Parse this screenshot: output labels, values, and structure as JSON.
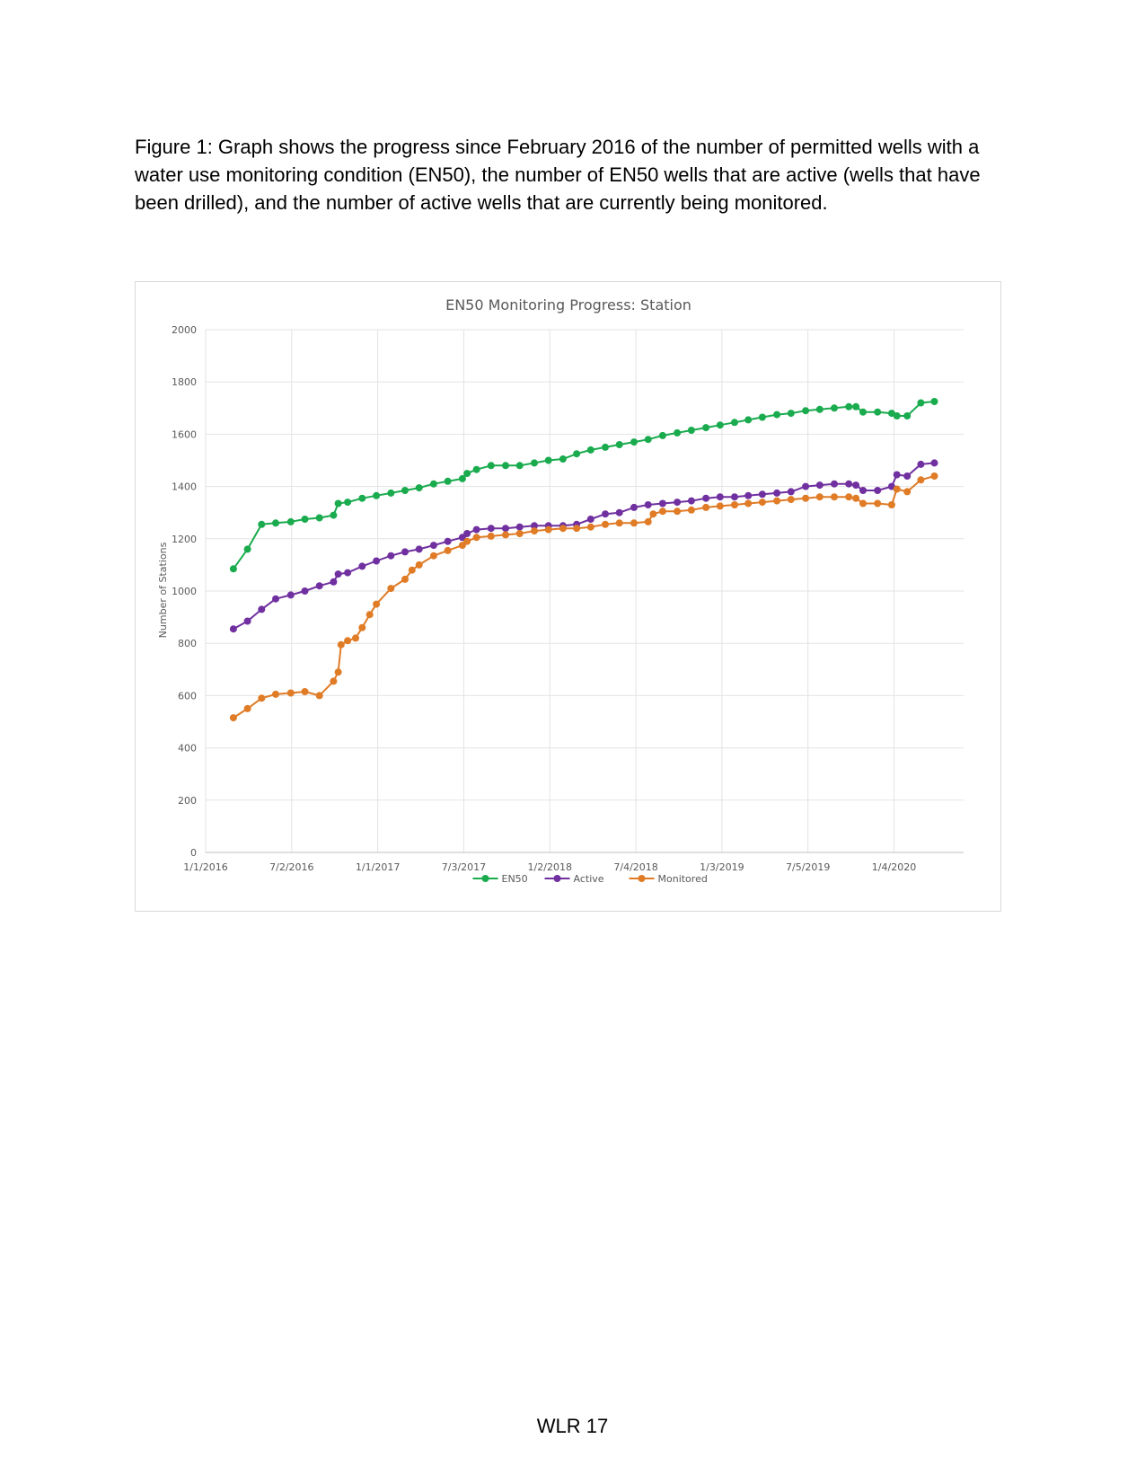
{
  "caption": "Figure 1: Graph shows the progress since February 2016 of the number of permitted wells with a water use monitoring condition (EN50), the number of EN50 wells that are active (wells that have been drilled), and the number of active wells that are currently being monitored.",
  "footer": "WLR 17",
  "chart_data": {
    "type": "line",
    "title": "EN50 Monitoring Progress: Station",
    "xlabel": "",
    "ylabel": "Number of Stations",
    "ylim": [
      0,
      2000
    ],
    "yticks": [
      0,
      200,
      400,
      600,
      800,
      1000,
      1200,
      1400,
      1600,
      1800,
      2000
    ],
    "xlim": [
      "2016-01-01",
      "2020-05-31"
    ],
    "xticks": [
      {
        "date": "2016-01-01",
        "label": "1/1/2016"
      },
      {
        "date": "2016-07-02",
        "label": "7/2/2016"
      },
      {
        "date": "2017-01-01",
        "label": "1/1/2017"
      },
      {
        "date": "2017-07-03",
        "label": "7/3/2017"
      },
      {
        "date": "2018-01-02",
        "label": "1/2/2018"
      },
      {
        "date": "2018-07-04",
        "label": "7/4/2018"
      },
      {
        "date": "2019-01-03",
        "label": "1/3/2019"
      },
      {
        "date": "2019-07-05",
        "label": "7/5/2019"
      },
      {
        "date": "2020-01-04",
        "label": "1/4/2020"
      }
    ],
    "grid": true,
    "legend": "bottom",
    "series": [
      {
        "name": "EN50",
        "color": "#1aab4e",
        "points": [
          [
            "2016-02-29",
            1085
          ],
          [
            "2016-03-30",
            1160
          ],
          [
            "2016-04-29",
            1255
          ],
          [
            "2016-05-29",
            1260
          ],
          [
            "2016-06-30",
            1265
          ],
          [
            "2016-07-30",
            1275
          ],
          [
            "2016-08-30",
            1280
          ],
          [
            "2016-09-29",
            1290
          ],
          [
            "2016-10-09",
            1335
          ],
          [
            "2016-10-29",
            1340
          ],
          [
            "2016-11-29",
            1355
          ],
          [
            "2016-12-29",
            1365
          ],
          [
            "2017-01-29",
            1375
          ],
          [
            "2017-02-28",
            1385
          ],
          [
            "2017-03-30",
            1395
          ],
          [
            "2017-04-30",
            1410
          ],
          [
            "2017-05-30",
            1420
          ],
          [
            "2017-06-30",
            1430
          ],
          [
            "2017-07-10",
            1450
          ],
          [
            "2017-07-30",
            1465
          ],
          [
            "2017-08-30",
            1480
          ],
          [
            "2017-09-30",
            1480
          ],
          [
            "2017-10-30",
            1480
          ],
          [
            "2017-11-30",
            1490
          ],
          [
            "2017-12-30",
            1500
          ],
          [
            "2018-01-30",
            1505
          ],
          [
            "2018-02-28",
            1525
          ],
          [
            "2018-03-30",
            1540
          ],
          [
            "2018-04-30",
            1550
          ],
          [
            "2018-05-30",
            1560
          ],
          [
            "2018-06-30",
            1570
          ],
          [
            "2018-07-30",
            1580
          ],
          [
            "2018-08-30",
            1595
          ],
          [
            "2018-09-30",
            1605
          ],
          [
            "2018-10-30",
            1615
          ],
          [
            "2018-11-30",
            1625
          ],
          [
            "2018-12-30",
            1635
          ],
          [
            "2019-01-30",
            1645
          ],
          [
            "2019-02-28",
            1655
          ],
          [
            "2019-03-30",
            1665
          ],
          [
            "2019-04-30",
            1675
          ],
          [
            "2019-05-30",
            1680
          ],
          [
            "2019-06-30",
            1690
          ],
          [
            "2019-07-30",
            1695
          ],
          [
            "2019-08-30",
            1700
          ],
          [
            "2019-09-30",
            1705
          ],
          [
            "2019-10-15",
            1705
          ],
          [
            "2019-10-30",
            1685
          ],
          [
            "2019-11-30",
            1685
          ],
          [
            "2019-12-30",
            1680
          ],
          [
            "2020-01-10",
            1670
          ],
          [
            "2020-02-01",
            1670
          ],
          [
            "2020-03-01",
            1720
          ],
          [
            "2020-03-30",
            1725
          ]
        ]
      },
      {
        "name": "Active",
        "color": "#7030a0",
        "points": [
          [
            "2016-02-29",
            855
          ],
          [
            "2016-03-30",
            885
          ],
          [
            "2016-04-29",
            930
          ],
          [
            "2016-05-29",
            970
          ],
          [
            "2016-06-30",
            985
          ],
          [
            "2016-07-30",
            1000
          ],
          [
            "2016-08-30",
            1020
          ],
          [
            "2016-09-29",
            1035
          ],
          [
            "2016-10-09",
            1065
          ],
          [
            "2016-10-29",
            1070
          ],
          [
            "2016-11-29",
            1095
          ],
          [
            "2016-12-29",
            1115
          ],
          [
            "2017-01-29",
            1135
          ],
          [
            "2017-02-28",
            1150
          ],
          [
            "2017-03-30",
            1160
          ],
          [
            "2017-04-30",
            1175
          ],
          [
            "2017-05-30",
            1190
          ],
          [
            "2017-06-30",
            1205
          ],
          [
            "2017-07-10",
            1220
          ],
          [
            "2017-07-30",
            1235
          ],
          [
            "2017-08-30",
            1240
          ],
          [
            "2017-09-30",
            1240
          ],
          [
            "2017-10-30",
            1245
          ],
          [
            "2017-11-30",
            1250
          ],
          [
            "2017-12-30",
            1250
          ],
          [
            "2018-01-30",
            1250
          ],
          [
            "2018-02-28",
            1255
          ],
          [
            "2018-03-30",
            1275
          ],
          [
            "2018-04-30",
            1295
          ],
          [
            "2018-05-30",
            1300
          ],
          [
            "2018-06-30",
            1320
          ],
          [
            "2018-07-30",
            1330
          ],
          [
            "2018-08-30",
            1335
          ],
          [
            "2018-09-30",
            1340
          ],
          [
            "2018-10-30",
            1345
          ],
          [
            "2018-11-30",
            1355
          ],
          [
            "2018-12-30",
            1360
          ],
          [
            "2019-01-30",
            1360
          ],
          [
            "2019-02-28",
            1365
          ],
          [
            "2019-03-30",
            1370
          ],
          [
            "2019-04-30",
            1375
          ],
          [
            "2019-05-30",
            1380
          ],
          [
            "2019-06-30",
            1400
          ],
          [
            "2019-07-30",
            1405
          ],
          [
            "2019-08-30",
            1410
          ],
          [
            "2019-09-30",
            1410
          ],
          [
            "2019-10-15",
            1405
          ],
          [
            "2019-10-30",
            1385
          ],
          [
            "2019-11-30",
            1385
          ],
          [
            "2019-12-30",
            1400
          ],
          [
            "2020-01-10",
            1445
          ],
          [
            "2020-02-01",
            1440
          ],
          [
            "2020-03-01",
            1485
          ],
          [
            "2020-03-30",
            1490
          ]
        ]
      },
      {
        "name": "Monitored",
        "color": "#e07b26",
        "points": [
          [
            "2016-02-29",
            515
          ],
          [
            "2016-03-30",
            550
          ],
          [
            "2016-04-29",
            590
          ],
          [
            "2016-05-29",
            605
          ],
          [
            "2016-06-30",
            610
          ],
          [
            "2016-07-30",
            615
          ],
          [
            "2016-08-30",
            600
          ],
          [
            "2016-09-29",
            655
          ],
          [
            "2016-10-09",
            690
          ],
          [
            "2016-10-15",
            795
          ],
          [
            "2016-10-29",
            810
          ],
          [
            "2016-11-15",
            820
          ],
          [
            "2016-11-29",
            860
          ],
          [
            "2016-12-15",
            910
          ],
          [
            "2016-12-29",
            950
          ],
          [
            "2017-01-29",
            1010
          ],
          [
            "2017-02-28",
            1045
          ],
          [
            "2017-03-15",
            1080
          ],
          [
            "2017-03-30",
            1100
          ],
          [
            "2017-04-30",
            1135
          ],
          [
            "2017-05-30",
            1155
          ],
          [
            "2017-06-30",
            1175
          ],
          [
            "2017-07-10",
            1190
          ],
          [
            "2017-07-30",
            1205
          ],
          [
            "2017-08-30",
            1210
          ],
          [
            "2017-09-30",
            1215
          ],
          [
            "2017-10-30",
            1220
          ],
          [
            "2017-11-30",
            1230
          ],
          [
            "2017-12-30",
            1235
          ],
          [
            "2018-01-30",
            1240
          ],
          [
            "2018-02-28",
            1240
          ],
          [
            "2018-03-30",
            1245
          ],
          [
            "2018-04-30",
            1255
          ],
          [
            "2018-05-30",
            1260
          ],
          [
            "2018-06-30",
            1260
          ],
          [
            "2018-07-30",
            1265
          ],
          [
            "2018-08-10",
            1295
          ],
          [
            "2018-08-30",
            1305
          ],
          [
            "2018-09-30",
            1305
          ],
          [
            "2018-10-30",
            1310
          ],
          [
            "2018-11-30",
            1320
          ],
          [
            "2018-12-30",
            1325
          ],
          [
            "2019-01-30",
            1330
          ],
          [
            "2019-02-28",
            1335
          ],
          [
            "2019-03-30",
            1340
          ],
          [
            "2019-04-30",
            1345
          ],
          [
            "2019-05-30",
            1350
          ],
          [
            "2019-06-30",
            1355
          ],
          [
            "2019-07-30",
            1360
          ],
          [
            "2019-08-30",
            1360
          ],
          [
            "2019-09-30",
            1360
          ],
          [
            "2019-10-15",
            1355
          ],
          [
            "2019-10-30",
            1335
          ],
          [
            "2019-11-30",
            1335
          ],
          [
            "2019-12-30",
            1330
          ],
          [
            "2020-01-10",
            1390
          ],
          [
            "2020-02-01",
            1380
          ],
          [
            "2020-03-01",
            1425
          ],
          [
            "2020-03-30",
            1440
          ]
        ]
      }
    ]
  }
}
